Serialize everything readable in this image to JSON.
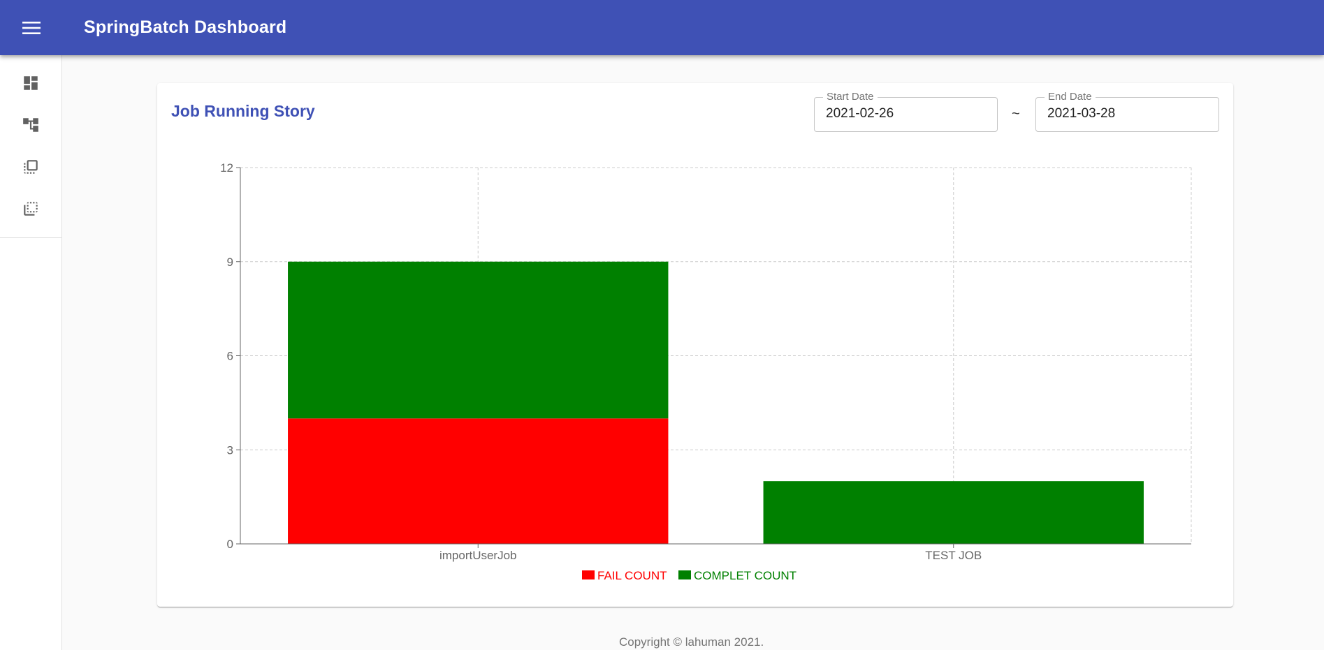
{
  "appbar": {
    "title": "SpringBatch Dashboard",
    "menu_icon": "menu-icon"
  },
  "drawer": {
    "items": [
      {
        "name": "dashboard",
        "icon": "dashboard-icon"
      },
      {
        "name": "job-hierarchy",
        "icon": "account-tree-icon"
      },
      {
        "name": "steps",
        "icon": "flip-to-front-icon"
      },
      {
        "name": "executions",
        "icon": "flip-to-back-icon"
      }
    ]
  },
  "card": {
    "title": "Job Running Story",
    "start_date": {
      "label": "Start Date",
      "value": "2021-02-26"
    },
    "separator": "~",
    "end_date": {
      "label": "End Date",
      "value": "2021-03-28"
    }
  },
  "chart_data": {
    "type": "bar",
    "stacked": true,
    "categories": [
      "importUserJob",
      "TEST JOB"
    ],
    "series": [
      {
        "name": "FAIL COUNT",
        "color": "#ff0000",
        "values": [
          4,
          0
        ]
      },
      {
        "name": "COMPLET COUNT",
        "color": "#008000",
        "values": [
          5,
          2
        ]
      }
    ],
    "yticks": [
      0,
      3,
      6,
      9,
      12
    ],
    "ylim": [
      0,
      12
    ],
    "grid": true,
    "legend_position": "bottom-center"
  },
  "footer": {
    "text": "Copyright © lahuman 2021."
  },
  "colors": {
    "primary": "#3f51b5",
    "icon": "#616161"
  }
}
